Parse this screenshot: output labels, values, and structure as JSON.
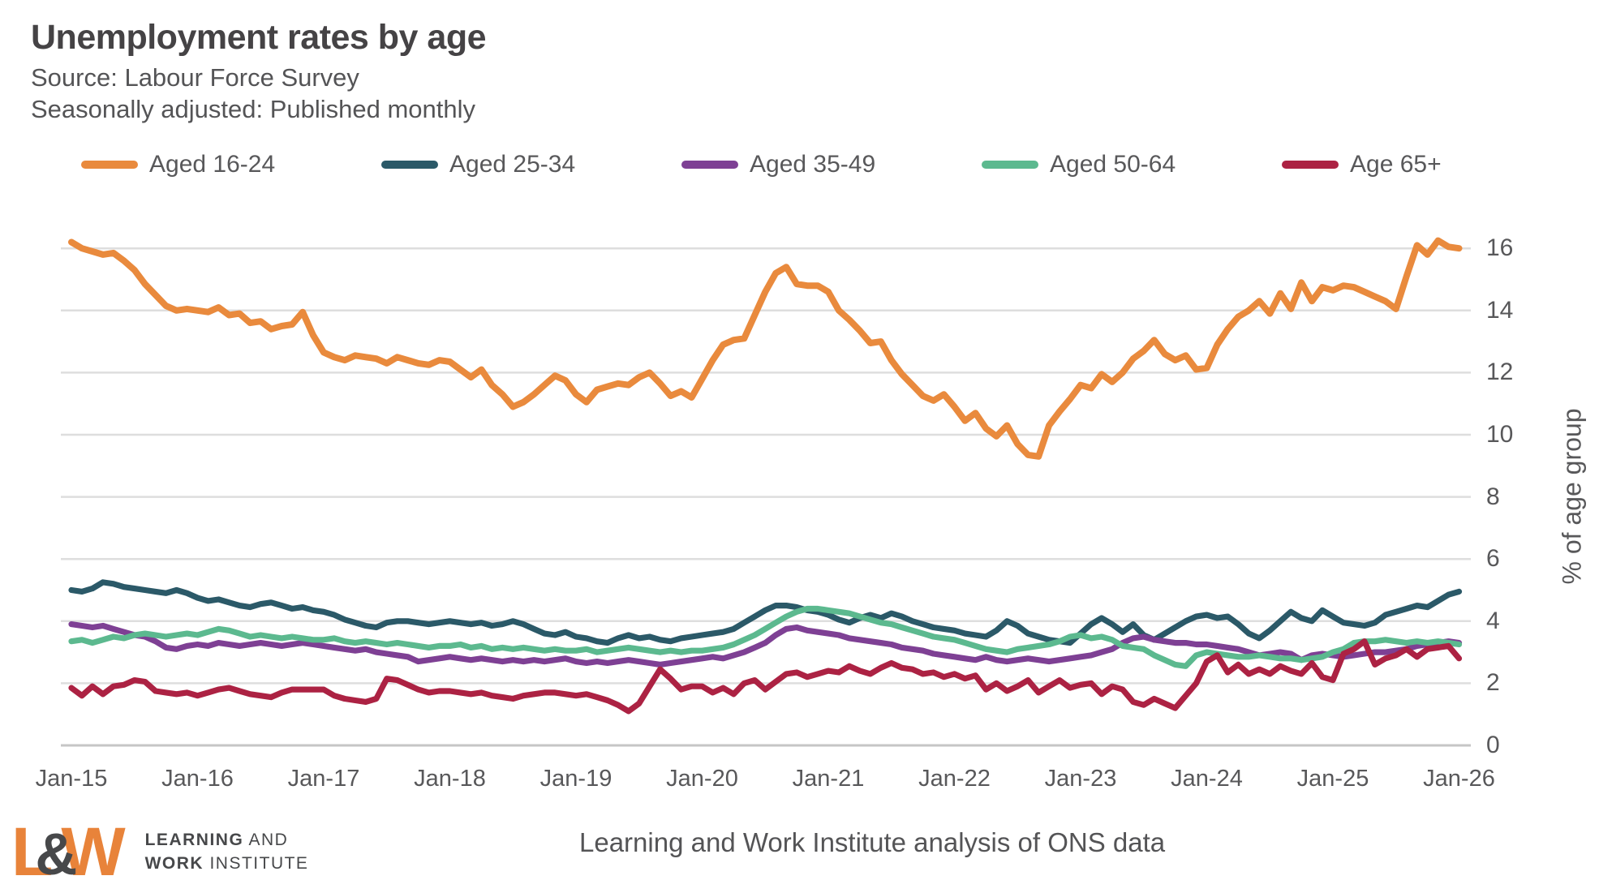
{
  "header": {
    "title": "Unemployment rates by age",
    "subtitle1": "Source: Labour Force Survey",
    "subtitle2": "Seasonally adjusted: Published monthly"
  },
  "footer": {
    "logo": {
      "letter_l": "L",
      "ampersand": "&",
      "letter_w": "W",
      "line1_bold": "LEARNING",
      "line1_rest": " AND",
      "line2_bold": "WORK",
      "line2_rest": " INSTITUTE"
    },
    "attribution": "Learning and Work Institute analysis of ONS data"
  },
  "colors": {
    "title_text": "#454345",
    "subtitle_text": "#545456",
    "axis_text": "#58585A",
    "gridline": "#DEDEDE",
    "baseline": "#C6C6C6",
    "logo_orange": "#E8833A",
    "logo_gray": "#47484A"
  },
  "chart_data": {
    "type": "line",
    "title": "Unemployment rates by age",
    "frequency": "monthly",
    "x_start": "Jan-15",
    "x_end": "Jan-26",
    "x_tick_labels": [
      "Jan-15",
      "Jan-16",
      "Jan-17",
      "Jan-18",
      "Jan-19",
      "Jan-20",
      "Jan-21",
      "Jan-22",
      "Jan-23",
      "Jan-24",
      "Jan-25",
      "Jan-26"
    ],
    "y_ticks": [
      0,
      2,
      4,
      6,
      8,
      10,
      12,
      14,
      16
    ],
    "ylim": [
      0,
      16.6
    ],
    "y_axis_label": "% of age group",
    "y_axis_side": "right",
    "grid": "horizontal",
    "legend_position": "top",
    "series": [
      {
        "name": "Aged 16-24",
        "color": "#E98A3D",
        "width": 8,
        "values": [
          16.2,
          16.0,
          15.9,
          15.8,
          15.85,
          15.6,
          15.3,
          14.85,
          14.5,
          14.15,
          14.0,
          14.05,
          14.0,
          13.95,
          14.1,
          13.85,
          13.9,
          13.6,
          13.65,
          13.4,
          13.5,
          13.55,
          13.95,
          13.2,
          12.65,
          12.5,
          12.4,
          12.55,
          12.5,
          12.45,
          12.3,
          12.5,
          12.4,
          12.3,
          12.25,
          12.4,
          12.35,
          12.1,
          11.85,
          12.1,
          11.6,
          11.3,
          10.9,
          11.05,
          11.3,
          11.6,
          11.9,
          11.75,
          11.3,
          11.05,
          11.45,
          11.55,
          11.65,
          11.6,
          11.85,
          12.0,
          11.65,
          11.25,
          11.4,
          11.2,
          11.8,
          12.4,
          12.9,
          13.05,
          13.1,
          13.85,
          14.6,
          15.2,
          15.4,
          14.85,
          14.8,
          14.8,
          14.6,
          14.0,
          13.7,
          13.35,
          12.95,
          13.0,
          12.4,
          11.95,
          11.6,
          11.25,
          11.1,
          11.3,
          10.9,
          10.45,
          10.7,
          10.2,
          9.95,
          10.3,
          9.7,
          9.35,
          9.3,
          10.3,
          10.75,
          11.15,
          11.6,
          11.5,
          11.95,
          11.7,
          12.0,
          12.45,
          12.7,
          13.05,
          12.6,
          12.4,
          12.55,
          12.1,
          12.15,
          12.9,
          13.4,
          13.8,
          14.0,
          14.3,
          13.9,
          14.55,
          14.05,
          14.9,
          14.3,
          14.75,
          14.65,
          14.8,
          14.75,
          14.6,
          14.45,
          14.3,
          14.05,
          15.1,
          16.1,
          15.8,
          16.25,
          16.05,
          16.0
        ]
      },
      {
        "name": "Aged 25-34",
        "color": "#2B5968",
        "width": 7.2,
        "values": [
          5.0,
          4.95,
          5.05,
          5.25,
          5.2,
          5.1,
          5.05,
          5.0,
          4.95,
          4.9,
          5.0,
          4.9,
          4.75,
          4.65,
          4.7,
          4.6,
          4.5,
          4.45,
          4.55,
          4.6,
          4.5,
          4.4,
          4.45,
          4.35,
          4.3,
          4.2,
          4.05,
          3.95,
          3.85,
          3.8,
          3.95,
          4.0,
          4.0,
          3.95,
          3.9,
          3.95,
          4.0,
          3.95,
          3.9,
          3.95,
          3.85,
          3.9,
          4.0,
          3.9,
          3.75,
          3.6,
          3.55,
          3.65,
          3.5,
          3.45,
          3.35,
          3.3,
          3.45,
          3.55,
          3.45,
          3.5,
          3.4,
          3.35,
          3.45,
          3.5,
          3.55,
          3.6,
          3.65,
          3.75,
          3.95,
          4.15,
          4.35,
          4.5,
          4.5,
          4.45,
          4.35,
          4.3,
          4.2,
          4.05,
          3.95,
          4.1,
          4.2,
          4.1,
          4.25,
          4.15,
          4.0,
          3.9,
          3.8,
          3.75,
          3.7,
          3.6,
          3.55,
          3.5,
          3.7,
          4.0,
          3.85,
          3.6,
          3.5,
          3.4,
          3.35,
          3.3,
          3.6,
          3.9,
          4.1,
          3.9,
          3.65,
          3.9,
          3.55,
          3.4,
          3.6,
          3.8,
          4.0,
          4.15,
          4.2,
          4.1,
          4.15,
          3.9,
          3.6,
          3.45,
          3.7,
          4.0,
          4.3,
          4.1,
          4.0,
          4.35,
          4.15,
          3.95,
          3.9,
          3.85,
          3.95,
          4.2,
          4.3,
          4.4,
          4.5,
          4.45,
          4.65,
          4.85,
          4.95
        ]
      },
      {
        "name": "Aged 35-49",
        "color": "#7E4094",
        "width": 7.2,
        "values": [
          3.9,
          3.85,
          3.8,
          3.85,
          3.75,
          3.65,
          3.55,
          3.5,
          3.35,
          3.15,
          3.1,
          3.2,
          3.25,
          3.2,
          3.3,
          3.25,
          3.2,
          3.25,
          3.3,
          3.25,
          3.2,
          3.25,
          3.3,
          3.25,
          3.2,
          3.15,
          3.1,
          3.05,
          3.1,
          3.0,
          2.95,
          2.9,
          2.85,
          2.7,
          2.75,
          2.8,
          2.85,
          2.8,
          2.75,
          2.8,
          2.75,
          2.7,
          2.75,
          2.7,
          2.75,
          2.7,
          2.75,
          2.8,
          2.7,
          2.65,
          2.7,
          2.65,
          2.7,
          2.75,
          2.7,
          2.65,
          2.6,
          2.65,
          2.7,
          2.75,
          2.8,
          2.85,
          2.8,
          2.9,
          3.0,
          3.15,
          3.3,
          3.55,
          3.75,
          3.8,
          3.7,
          3.65,
          3.6,
          3.55,
          3.45,
          3.4,
          3.35,
          3.3,
          3.25,
          3.15,
          3.1,
          3.05,
          2.95,
          2.9,
          2.85,
          2.8,
          2.75,
          2.85,
          2.75,
          2.7,
          2.75,
          2.8,
          2.75,
          2.7,
          2.75,
          2.8,
          2.85,
          2.9,
          3.0,
          3.1,
          3.3,
          3.45,
          3.5,
          3.4,
          3.35,
          3.3,
          3.3,
          3.25,
          3.25,
          3.2,
          3.15,
          3.1,
          3.0,
          2.9,
          2.95,
          3.0,
          2.95,
          2.75,
          2.9,
          2.95,
          2.9,
          2.85,
          2.9,
          2.95,
          3.0,
          3.0,
          3.05,
          3.1,
          3.2,
          3.25,
          3.3,
          3.35,
          3.3
        ]
      },
      {
        "name": "Aged 50-64",
        "color": "#5CB98F",
        "width": 7.2,
        "values": [
          3.35,
          3.4,
          3.3,
          3.4,
          3.5,
          3.45,
          3.55,
          3.6,
          3.55,
          3.5,
          3.55,
          3.6,
          3.55,
          3.65,
          3.75,
          3.7,
          3.6,
          3.5,
          3.55,
          3.5,
          3.45,
          3.5,
          3.45,
          3.4,
          3.4,
          3.45,
          3.35,
          3.3,
          3.35,
          3.3,
          3.25,
          3.3,
          3.25,
          3.2,
          3.15,
          3.2,
          3.2,
          3.25,
          3.15,
          3.2,
          3.1,
          3.15,
          3.1,
          3.15,
          3.1,
          3.05,
          3.1,
          3.05,
          3.05,
          3.1,
          3.0,
          3.05,
          3.1,
          3.15,
          3.1,
          3.05,
          3.0,
          3.05,
          3.0,
          3.05,
          3.05,
          3.1,
          3.15,
          3.25,
          3.4,
          3.55,
          3.75,
          3.95,
          4.15,
          4.3,
          4.4,
          4.4,
          4.35,
          4.3,
          4.25,
          4.15,
          4.05,
          3.95,
          3.9,
          3.8,
          3.7,
          3.6,
          3.5,
          3.45,
          3.4,
          3.3,
          3.2,
          3.1,
          3.05,
          3.0,
          3.1,
          3.15,
          3.2,
          3.25,
          3.35,
          3.5,
          3.55,
          3.45,
          3.5,
          3.4,
          3.2,
          3.15,
          3.1,
          2.9,
          2.75,
          2.6,
          2.55,
          2.9,
          3.0,
          2.95,
          2.9,
          2.85,
          2.85,
          2.9,
          2.85,
          2.8,
          2.8,
          2.75,
          2.8,
          2.85,
          3.0,
          3.1,
          3.3,
          3.35,
          3.35,
          3.4,
          3.35,
          3.3,
          3.35,
          3.3,
          3.35,
          3.3,
          3.25
        ]
      },
      {
        "name": "Age 65+",
        "color": "#AC2243",
        "width": 7.2,
        "values": [
          1.85,
          1.6,
          1.9,
          1.65,
          1.9,
          1.95,
          2.1,
          2.05,
          1.75,
          1.7,
          1.65,
          1.7,
          1.6,
          1.7,
          1.8,
          1.85,
          1.75,
          1.65,
          1.6,
          1.55,
          1.7,
          1.8,
          1.8,
          1.8,
          1.8,
          1.6,
          1.5,
          1.45,
          1.4,
          1.5,
          2.15,
          2.1,
          1.95,
          1.8,
          1.7,
          1.75,
          1.75,
          1.7,
          1.65,
          1.7,
          1.6,
          1.55,
          1.5,
          1.6,
          1.65,
          1.7,
          1.7,
          1.65,
          1.6,
          1.65,
          1.55,
          1.45,
          1.3,
          1.1,
          1.35,
          1.9,
          2.45,
          2.15,
          1.8,
          1.9,
          1.9,
          1.7,
          1.85,
          1.65,
          2.0,
          2.1,
          1.8,
          2.05,
          2.3,
          2.35,
          2.2,
          2.3,
          2.4,
          2.35,
          2.55,
          2.4,
          2.3,
          2.5,
          2.65,
          2.5,
          2.45,
          2.3,
          2.35,
          2.2,
          2.3,
          2.15,
          2.25,
          1.8,
          2.0,
          1.75,
          1.9,
          2.1,
          1.7,
          1.9,
          2.1,
          1.85,
          1.95,
          2.0,
          1.65,
          1.9,
          1.8,
          1.4,
          1.3,
          1.5,
          1.35,
          1.2,
          1.6,
          2.0,
          2.7,
          2.9,
          2.35,
          2.6,
          2.3,
          2.45,
          2.3,
          2.55,
          2.4,
          2.3,
          2.65,
          2.2,
          2.1,
          2.95,
          3.1,
          3.35,
          2.6,
          2.8,
          2.9,
          3.1,
          2.85,
          3.1,
          3.15,
          3.2,
          2.8
        ]
      }
    ]
  }
}
